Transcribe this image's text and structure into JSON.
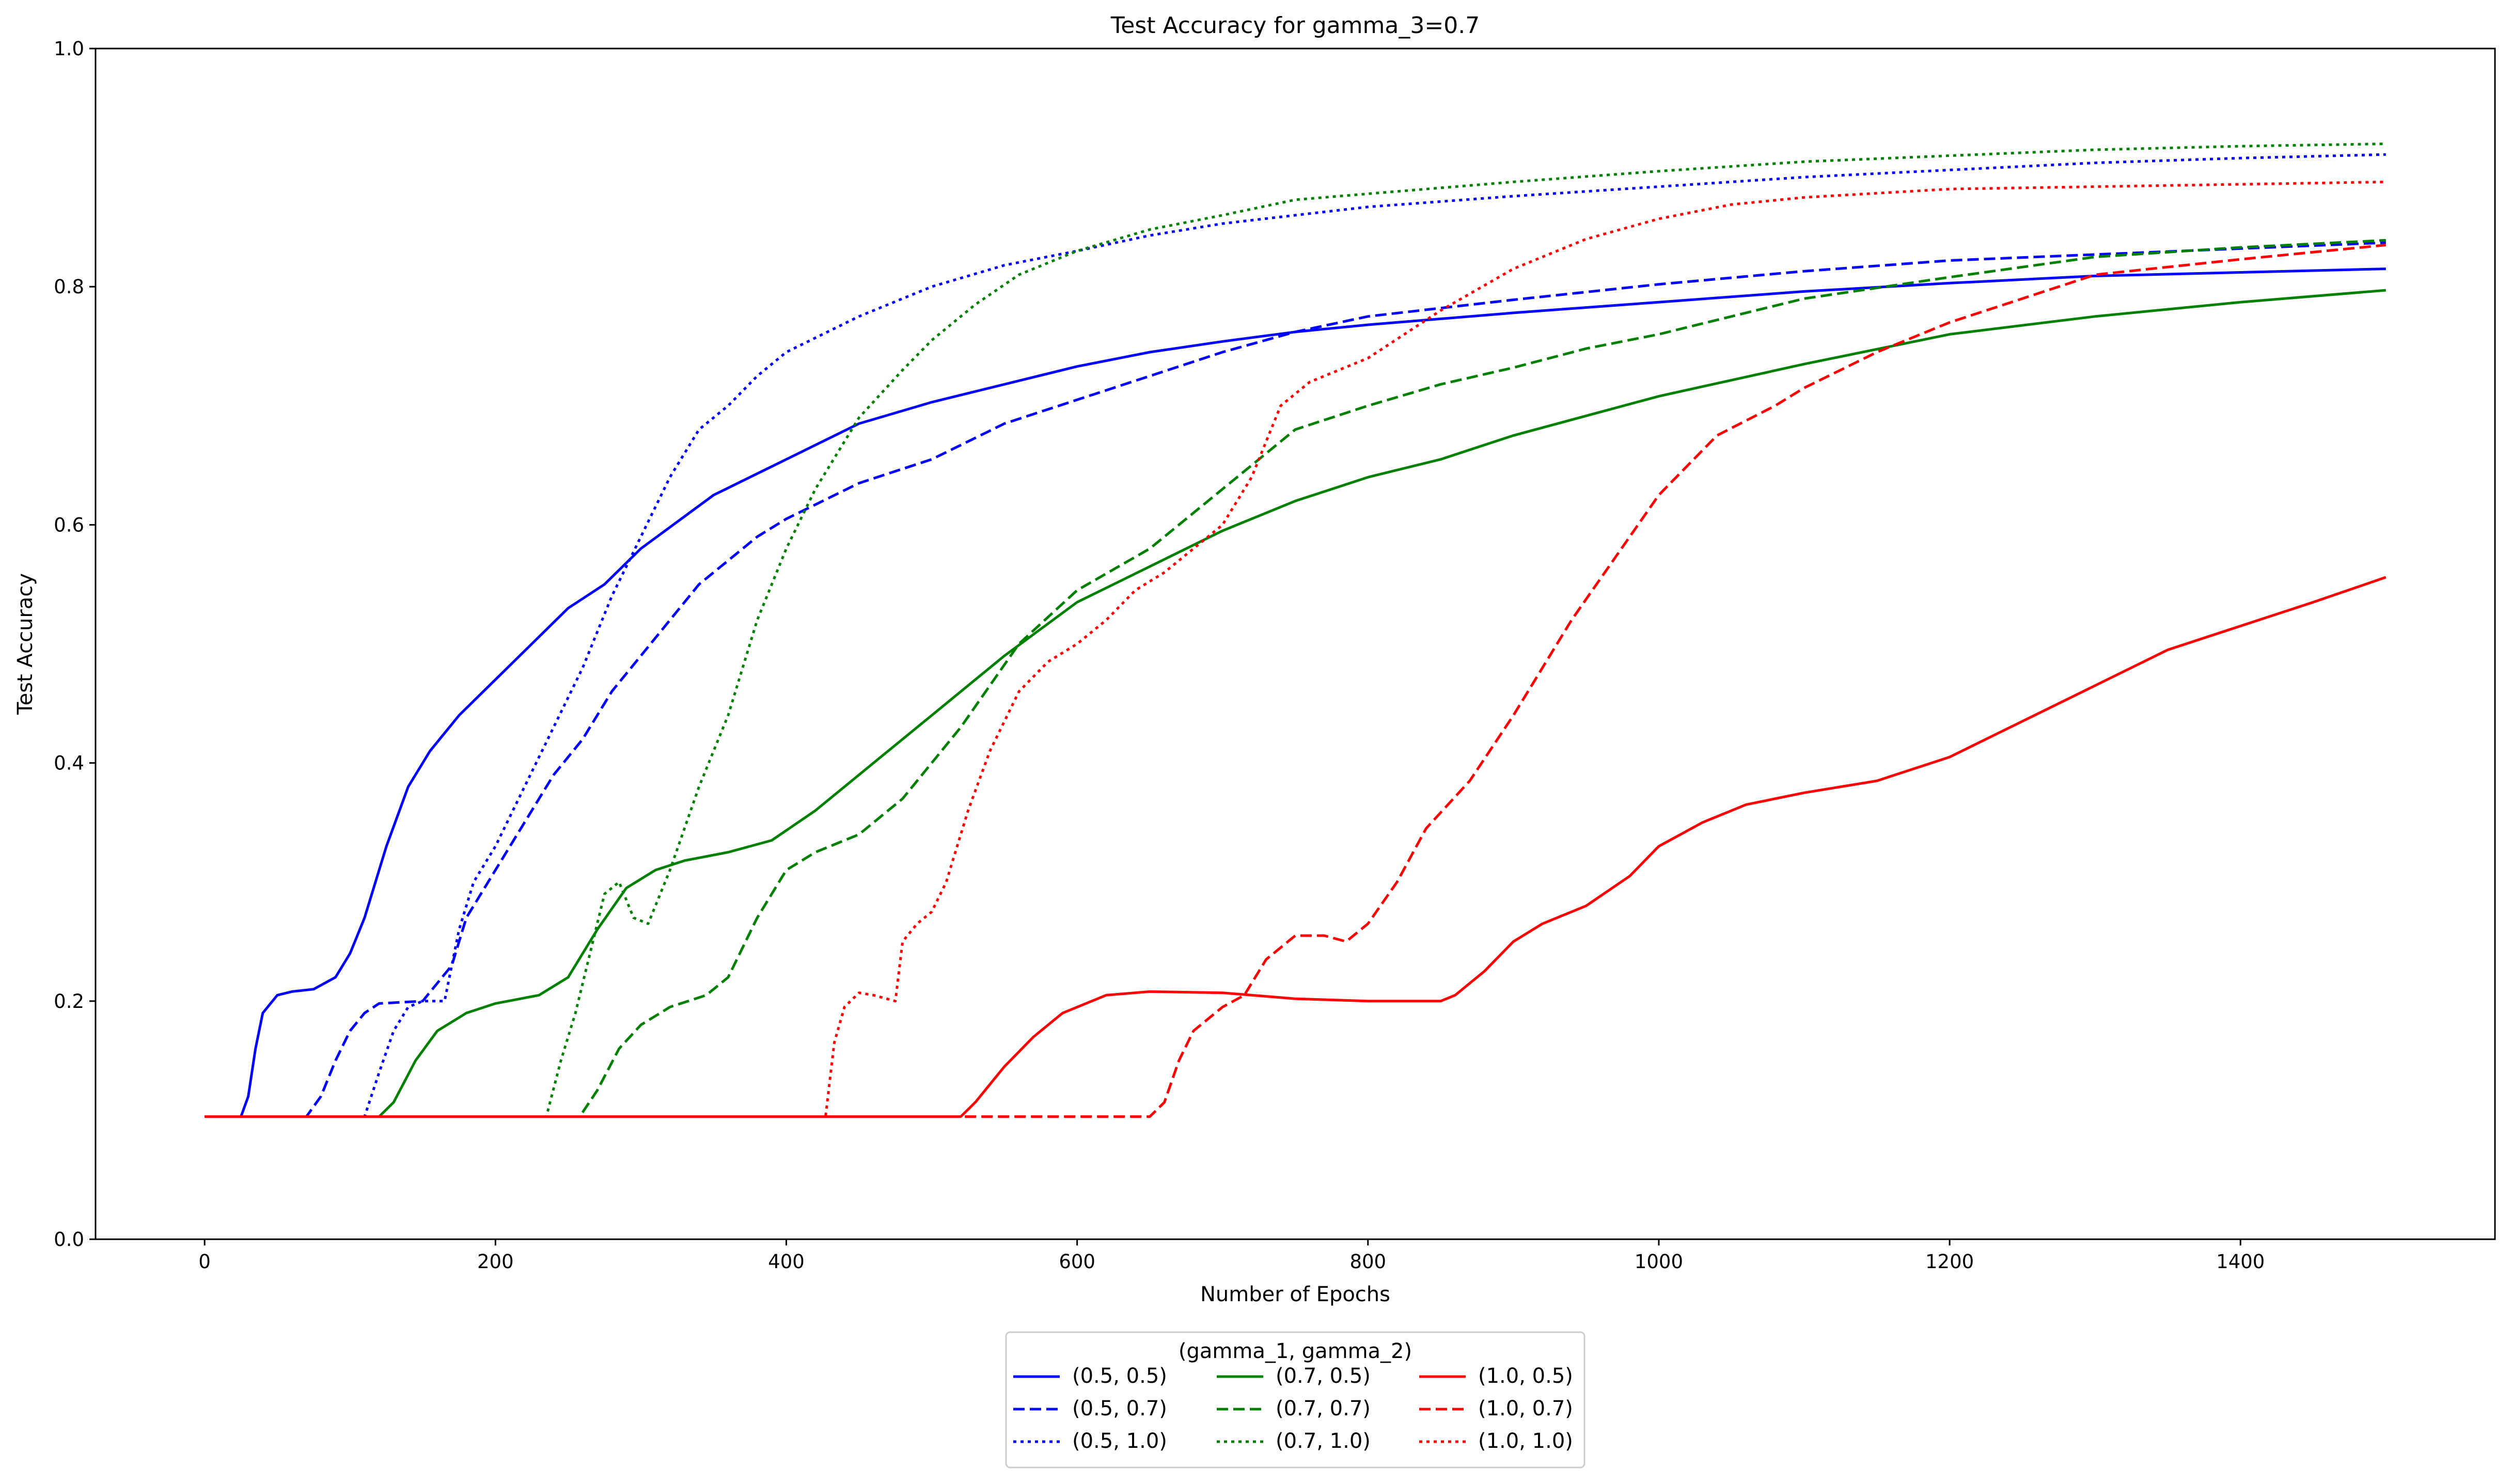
{
  "chart_data": {
    "type": "line",
    "title": "Test Accuracy for gamma_3=0.7",
    "xlabel": "Number of Epochs",
    "ylabel": "Test Accuracy",
    "xlim": [
      -75,
      1575
    ],
    "ylim": [
      0.0,
      1.0
    ],
    "xticks": [
      0,
      200,
      400,
      600,
      800,
      1000,
      1200,
      1400
    ],
    "yticks": [
      0.0,
      0.2,
      0.4,
      0.6,
      0.8,
      1.0
    ],
    "xtick_labels": [
      "0",
      "200",
      "400",
      "600",
      "800",
      "1000",
      "1200",
      "1400"
    ],
    "ytick_labels": [
      "0.0",
      "0.2",
      "0.4",
      "0.6",
      "0.8",
      "1.0"
    ],
    "grid": false,
    "legend": {
      "title": "(gamma_1, gamma_2)",
      "placement": "bottom-center, below axes",
      "columns": 3
    },
    "series": [
      {
        "name": "(0.5, 0.5)",
        "color": "#0000ff",
        "style": "solid",
        "points": [
          [
            0,
            0.103
          ],
          [
            25,
            0.103
          ],
          [
            30,
            0.12
          ],
          [
            35,
            0.16
          ],
          [
            40,
            0.19
          ],
          [
            50,
            0.205
          ],
          [
            60,
            0.208
          ],
          [
            75,
            0.21
          ],
          [
            90,
            0.22
          ],
          [
            100,
            0.24
          ],
          [
            110,
            0.27
          ],
          [
            125,
            0.33
          ],
          [
            140,
            0.38
          ],
          [
            155,
            0.41
          ],
          [
            175,
            0.44
          ],
          [
            200,
            0.47
          ],
          [
            225,
            0.5
          ],
          [
            250,
            0.53
          ],
          [
            275,
            0.55
          ],
          [
            300,
            0.58
          ],
          [
            350,
            0.625
          ],
          [
            400,
            0.655
          ],
          [
            450,
            0.685
          ],
          [
            500,
            0.703
          ],
          [
            550,
            0.718
          ],
          [
            600,
            0.733
          ],
          [
            650,
            0.745
          ],
          [
            700,
            0.754
          ],
          [
            750,
            0.762
          ],
          [
            800,
            0.768
          ],
          [
            900,
            0.778
          ],
          [
            1000,
            0.787
          ],
          [
            1100,
            0.796
          ],
          [
            1200,
            0.803
          ],
          [
            1300,
            0.809
          ],
          [
            1400,
            0.812
          ],
          [
            1500,
            0.815
          ]
        ]
      },
      {
        "name": "(0.5, 0.7)",
        "color": "#0000ff",
        "style": "dashed",
        "points": [
          [
            0,
            0.103
          ],
          [
            70,
            0.103
          ],
          [
            80,
            0.12
          ],
          [
            90,
            0.15
          ],
          [
            100,
            0.175
          ],
          [
            110,
            0.19
          ],
          [
            120,
            0.198
          ],
          [
            150,
            0.2
          ],
          [
            170,
            0.23
          ],
          [
            180,
            0.27
          ],
          [
            200,
            0.31
          ],
          [
            220,
            0.35
          ],
          [
            240,
            0.39
          ],
          [
            260,
            0.42
          ],
          [
            280,
            0.46
          ],
          [
            300,
            0.49
          ],
          [
            320,
            0.52
          ],
          [
            340,
            0.55
          ],
          [
            360,
            0.57
          ],
          [
            380,
            0.59
          ],
          [
            400,
            0.605
          ],
          [
            450,
            0.635
          ],
          [
            500,
            0.655
          ],
          [
            550,
            0.685
          ],
          [
            600,
            0.705
          ],
          [
            650,
            0.725
          ],
          [
            700,
            0.745
          ],
          [
            750,
            0.762
          ],
          [
            800,
            0.775
          ],
          [
            900,
            0.789
          ],
          [
            1000,
            0.802
          ],
          [
            1100,
            0.813
          ],
          [
            1200,
            0.822
          ],
          [
            1300,
            0.827
          ],
          [
            1400,
            0.832
          ],
          [
            1500,
            0.837
          ]
        ]
      },
      {
        "name": "(0.5, 1.0)",
        "color": "#0000ff",
        "style": "dotted",
        "points": [
          [
            0,
            0.103
          ],
          [
            110,
            0.103
          ],
          [
            120,
            0.14
          ],
          [
            130,
            0.175
          ],
          [
            140,
            0.195
          ],
          [
            150,
            0.2
          ],
          [
            165,
            0.2
          ],
          [
            175,
            0.26
          ],
          [
            185,
            0.3
          ],
          [
            200,
            0.33
          ],
          [
            220,
            0.38
          ],
          [
            240,
            0.43
          ],
          [
            260,
            0.48
          ],
          [
            280,
            0.54
          ],
          [
            300,
            0.59
          ],
          [
            320,
            0.64
          ],
          [
            340,
            0.68
          ],
          [
            360,
            0.7
          ],
          [
            380,
            0.725
          ],
          [
            400,
            0.745
          ],
          [
            450,
            0.775
          ],
          [
            500,
            0.8
          ],
          [
            550,
            0.818
          ],
          [
            600,
            0.83
          ],
          [
            650,
            0.843
          ],
          [
            700,
            0.853
          ],
          [
            800,
            0.867
          ],
          [
            900,
            0.876
          ],
          [
            1000,
            0.884
          ],
          [
            1100,
            0.892
          ],
          [
            1200,
            0.898
          ],
          [
            1300,
            0.904
          ],
          [
            1400,
            0.908
          ],
          [
            1500,
            0.911
          ]
        ]
      },
      {
        "name": "(0.7, 0.5)",
        "color": "#008000",
        "style": "solid",
        "points": [
          [
            0,
            0.103
          ],
          [
            120,
            0.103
          ],
          [
            130,
            0.115
          ],
          [
            145,
            0.15
          ],
          [
            160,
            0.175
          ],
          [
            180,
            0.19
          ],
          [
            200,
            0.198
          ],
          [
            230,
            0.205
          ],
          [
            250,
            0.22
          ],
          [
            270,
            0.26
          ],
          [
            290,
            0.295
          ],
          [
            310,
            0.31
          ],
          [
            330,
            0.318
          ],
          [
            360,
            0.325
          ],
          [
            390,
            0.335
          ],
          [
            420,
            0.36
          ],
          [
            460,
            0.4
          ],
          [
            500,
            0.44
          ],
          [
            550,
            0.49
          ],
          [
            600,
            0.535
          ],
          [
            650,
            0.565
          ],
          [
            700,
            0.595
          ],
          [
            750,
            0.62
          ],
          [
            800,
            0.64
          ],
          [
            850,
            0.655
          ],
          [
            900,
            0.675
          ],
          [
            1000,
            0.708
          ],
          [
            1100,
            0.735
          ],
          [
            1200,
            0.76
          ],
          [
            1300,
            0.775
          ],
          [
            1400,
            0.787
          ],
          [
            1500,
            0.797
          ]
        ]
      },
      {
        "name": "(0.7, 0.7)",
        "color": "#008000",
        "style": "dashed",
        "points": [
          [
            0,
            0.103
          ],
          [
            258,
            0.103
          ],
          [
            270,
            0.125
          ],
          [
            285,
            0.16
          ],
          [
            300,
            0.18
          ],
          [
            320,
            0.195
          ],
          [
            345,
            0.205
          ],
          [
            360,
            0.22
          ],
          [
            380,
            0.27
          ],
          [
            400,
            0.31
          ],
          [
            420,
            0.325
          ],
          [
            450,
            0.34
          ],
          [
            480,
            0.37
          ],
          [
            520,
            0.43
          ],
          [
            560,
            0.5
          ],
          [
            600,
            0.545
          ],
          [
            650,
            0.58
          ],
          [
            700,
            0.63
          ],
          [
            725,
            0.655
          ],
          [
            750,
            0.68
          ],
          [
            800,
            0.7
          ],
          [
            850,
            0.718
          ],
          [
            900,
            0.732
          ],
          [
            950,
            0.748
          ],
          [
            1000,
            0.76
          ],
          [
            1050,
            0.775
          ],
          [
            1100,
            0.79
          ],
          [
            1200,
            0.808
          ],
          [
            1300,
            0.825
          ],
          [
            1400,
            0.833
          ],
          [
            1500,
            0.839
          ]
        ]
      },
      {
        "name": "(0.7, 1.0)",
        "color": "#008000",
        "style": "dotted",
        "points": [
          [
            0,
            0.103
          ],
          [
            235,
            0.103
          ],
          [
            245,
            0.15
          ],
          [
            255,
            0.19
          ],
          [
            265,
            0.24
          ],
          [
            275,
            0.29
          ],
          [
            285,
            0.3
          ],
          [
            295,
            0.27
          ],
          [
            305,
            0.265
          ],
          [
            320,
            0.31
          ],
          [
            340,
            0.38
          ],
          [
            360,
            0.44
          ],
          [
            380,
            0.52
          ],
          [
            400,
            0.58
          ],
          [
            420,
            0.63
          ],
          [
            450,
            0.69
          ],
          [
            480,
            0.73
          ],
          [
            500,
            0.755
          ],
          [
            530,
            0.785
          ],
          [
            560,
            0.81
          ],
          [
            600,
            0.83
          ],
          [
            650,
            0.848
          ],
          [
            700,
            0.86
          ],
          [
            750,
            0.873
          ],
          [
            800,
            0.878
          ],
          [
            900,
            0.888
          ],
          [
            1000,
            0.897
          ],
          [
            1100,
            0.905
          ],
          [
            1200,
            0.91
          ],
          [
            1300,
            0.915
          ],
          [
            1400,
            0.918
          ],
          [
            1500,
            0.92
          ]
        ]
      },
      {
        "name": "(1.0, 0.5)",
        "color": "#ff0000",
        "style": "solid",
        "points": [
          [
            0,
            0.103
          ],
          [
            520,
            0.103
          ],
          [
            530,
            0.115
          ],
          [
            550,
            0.145
          ],
          [
            570,
            0.17
          ],
          [
            590,
            0.19
          ],
          [
            620,
            0.205
          ],
          [
            650,
            0.208
          ],
          [
            700,
            0.207
          ],
          [
            750,
            0.202
          ],
          [
            800,
            0.2
          ],
          [
            850,
            0.2
          ],
          [
            860,
            0.205
          ],
          [
            880,
            0.225
          ],
          [
            900,
            0.25
          ],
          [
            920,
            0.265
          ],
          [
            950,
            0.28
          ],
          [
            980,
            0.305
          ],
          [
            1000,
            0.33
          ],
          [
            1030,
            0.35
          ],
          [
            1060,
            0.365
          ],
          [
            1100,
            0.375
          ],
          [
            1150,
            0.385
          ],
          [
            1200,
            0.405
          ],
          [
            1250,
            0.435
          ],
          [
            1300,
            0.465
          ],
          [
            1350,
            0.495
          ],
          [
            1400,
            0.515
          ],
          [
            1450,
            0.535
          ],
          [
            1500,
            0.556
          ]
        ]
      },
      {
        "name": "(1.0, 0.7)",
        "color": "#ff0000",
        "style": "dashed",
        "points": [
          [
            0,
            0.103
          ],
          [
            650,
            0.103
          ],
          [
            660,
            0.115
          ],
          [
            670,
            0.15
          ],
          [
            680,
            0.175
          ],
          [
            700,
            0.195
          ],
          [
            715,
            0.205
          ],
          [
            730,
            0.235
          ],
          [
            750,
            0.255
          ],
          [
            770,
            0.255
          ],
          [
            785,
            0.25
          ],
          [
            800,
            0.265
          ],
          [
            820,
            0.3
          ],
          [
            840,
            0.345
          ],
          [
            870,
            0.385
          ],
          [
            900,
            0.44
          ],
          [
            940,
            0.52
          ],
          [
            980,
            0.59
          ],
          [
            1000,
            0.625
          ],
          [
            1040,
            0.675
          ],
          [
            1080,
            0.7
          ],
          [
            1100,
            0.715
          ],
          [
            1150,
            0.745
          ],
          [
            1200,
            0.77
          ],
          [
            1250,
            0.79
          ],
          [
            1300,
            0.81
          ],
          [
            1400,
            0.823
          ],
          [
            1500,
            0.835
          ]
        ]
      },
      {
        "name": "(1.0, 1.0)",
        "color": "#ff0000",
        "style": "dotted",
        "points": [
          [
            0,
            0.103
          ],
          [
            427,
            0.103
          ],
          [
            433,
            0.165
          ],
          [
            440,
            0.195
          ],
          [
            450,
            0.207
          ],
          [
            460,
            0.205
          ],
          [
            475,
            0.2
          ],
          [
            480,
            0.25
          ],
          [
            490,
            0.265
          ],
          [
            500,
            0.275
          ],
          [
            510,
            0.3
          ],
          [
            525,
            0.36
          ],
          [
            540,
            0.41
          ],
          [
            560,
            0.46
          ],
          [
            580,
            0.485
          ],
          [
            600,
            0.5
          ],
          [
            620,
            0.52
          ],
          [
            640,
            0.545
          ],
          [
            660,
            0.56
          ],
          [
            680,
            0.58
          ],
          [
            700,
            0.6
          ],
          [
            720,
            0.64
          ],
          [
            740,
            0.7
          ],
          [
            760,
            0.72
          ],
          [
            800,
            0.74
          ],
          [
            850,
            0.78
          ],
          [
            900,
            0.815
          ],
          [
            950,
            0.84
          ],
          [
            1000,
            0.857
          ],
          [
            1050,
            0.869
          ],
          [
            1100,
            0.875
          ],
          [
            1200,
            0.882
          ],
          [
            1300,
            0.884
          ],
          [
            1400,
            0.886
          ],
          [
            1500,
            0.888
          ]
        ]
      }
    ]
  }
}
